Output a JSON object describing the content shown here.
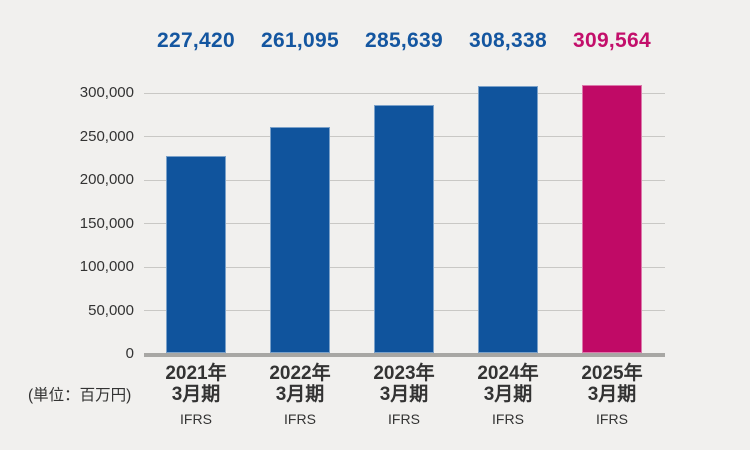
{
  "chart_data": {
    "type": "bar",
    "title": "",
    "unit_note": "(単位：百万円)",
    "categories": [
      {
        "line1": "2021年",
        "line2": "3月期",
        "standard": "IFRS"
      },
      {
        "line1": "2022年",
        "line2": "3月期",
        "standard": "IFRS"
      },
      {
        "line1": "2023年",
        "line2": "3月期",
        "standard": "IFRS"
      },
      {
        "line1": "2024年",
        "line2": "3月期",
        "standard": "IFRS"
      },
      {
        "line1": "2025年",
        "line2": "3月期",
        "standard": "IFRS"
      }
    ],
    "values": [
      227420,
      261095,
      285639,
      308338,
      309564
    ],
    "value_labels": [
      "227,420",
      "261,095",
      "285,639",
      "308,338",
      "309,564"
    ],
    "bar_colors": [
      "#10549d",
      "#10549d",
      "#10549d",
      "#10549d",
      "#c00a66"
    ],
    "value_label_colors": [
      "#1456a0",
      "#1456a0",
      "#1456a0",
      "#1456a0",
      "#c30f6b"
    ],
    "ylim": [
      0,
      300000
    ],
    "ytick_step": 50000,
    "ytick_labels": [
      "0",
      "50,000",
      "100,000",
      "150,000",
      "200,000",
      "250,000",
      "300,000"
    ],
    "grid": true,
    "legend": "none",
    "highlight_index": 4
  },
  "colors": {
    "background": "#f1f0ee",
    "gridline": "#c9c8c5",
    "baseline": "#a8a7a4",
    "axis_text": "#333333",
    "bar_blue": "#10549d",
    "bar_magenta": "#c00a66"
  }
}
